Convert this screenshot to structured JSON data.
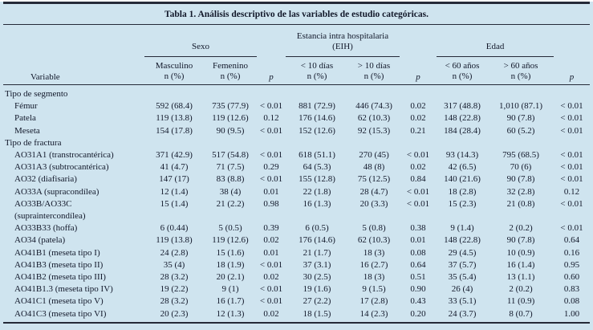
{
  "colors": {
    "page_bg": "#cfe4ef",
    "text": "#12182a",
    "rule": "#252a38"
  },
  "title": "Tabla 1. Análisis descriptivo de las variables de estudio categóricas.",
  "header": {
    "variable": "Variable",
    "p": "p",
    "groups": [
      {
        "label": "Sexo",
        "cols": [
          {
            "name": "Masculino",
            "unit": "n (%)"
          },
          {
            "name": "Femenino",
            "unit": "n (%)"
          }
        ]
      },
      {
        "label": "Estancia intra hospitalaria (EIH)",
        "cols": [
          {
            "name": "< 10 días",
            "unit": "n (%)"
          },
          {
            "name": "> 10 días",
            "unit": "n (%)"
          }
        ]
      },
      {
        "label": "Edad",
        "cols": [
          {
            "name": "< 60 años",
            "unit": "n (%)"
          },
          {
            "name": "> 60 años",
            "unit": "n (%)"
          }
        ]
      }
    ]
  },
  "rows": [
    {
      "type": "section",
      "label": "Tipo de segmento"
    },
    {
      "type": "data",
      "label": "Fémur",
      "cells": [
        "592 (68.4)",
        "735 (77.9)",
        "< 0.01",
        "881 (72.9)",
        "446 (74.3)",
        "0.02",
        "317 (48.8)",
        "1,010 (87.1)",
        "< 0.01"
      ]
    },
    {
      "type": "data",
      "label": "Patela",
      "cells": [
        "119 (13.8)",
        "119 (12.6)",
        "0.12",
        "176 (14.6)",
        "62 (10.3)",
        "0.02",
        "148 (22.8)",
        "90 (7.8)",
        "< 0.01"
      ]
    },
    {
      "type": "data",
      "label": "Meseta",
      "cells": [
        "154 (17.8)",
        "90 (9.5)",
        "< 0.01",
        "152 (12.6)",
        "92 (15.3)",
        "0.21",
        "184 (28.4)",
        "60 (5.2)",
        "< 0.01"
      ]
    },
    {
      "type": "section",
      "label": "Tipo de fractura"
    },
    {
      "type": "data",
      "label": "AO31A1 (transtrocantérica)",
      "cells": [
        "371 (42.9)",
        "517 (54.8)",
        "< 0.01",
        "618 (51.1)",
        "270 (45)",
        "< 0.01",
        "93 (14.3)",
        "795 (68.5)",
        "< 0.01"
      ]
    },
    {
      "type": "data",
      "label": "AO31A3 (subtrocantérica)",
      "cells": [
        "41 (4.7)",
        "71 (7.5)",
        "0.29",
        "64 (5.3)",
        "48 (8)",
        "0.02",
        "42 (6.5)",
        "70 (6)",
        "< 0.01"
      ]
    },
    {
      "type": "data",
      "label": "AO32 (diafisaria)",
      "cells": [
        "147 (17)",
        "83 (8.8)",
        "< 0.01",
        "155 (12.8)",
        "75 (12.5)",
        "0.84",
        "140 (21.6)",
        "90 (7.8)",
        "< 0.01"
      ]
    },
    {
      "type": "data",
      "label": "AO33A (supracondílea)",
      "cells": [
        "12 (1.4)",
        "38 (4)",
        "0.01",
        "22 (1.8)",
        "28 (4.7)",
        "< 0.01",
        "18 (2.8)",
        "32 (2.8)",
        "0.12"
      ]
    },
    {
      "type": "data",
      "label": "AO33B/AO33C",
      "label2": "(supraintercondílea)",
      "cells": [
        "15 (1.4)",
        "21 (2.2)",
        "0.98",
        "16 (1.3)",
        "20 (3.3)",
        "< 0.01",
        "15 (2.3)",
        "21 (0.8)",
        "< 0.01"
      ]
    },
    {
      "type": "data",
      "label": "AO33B33 (hoffa)",
      "cells": [
        "6 (0.44)",
        "5 (0.5)",
        "0.39",
        "6 (0.5)",
        "5 (0.8)",
        "0.38",
        "9 (1.4)",
        "2 (0.2)",
        "< 0.01"
      ]
    },
    {
      "type": "data",
      "label": "AO34 (patela)",
      "cells": [
        "119 (13.8)",
        "119 (12.6)",
        "0.02",
        "176 (14.6)",
        "62 (10.3)",
        "0.01",
        "148 (22.8)",
        "90 (7.8)",
        "0.64"
      ]
    },
    {
      "type": "data",
      "label": "AO41B1 (meseta tipo I)",
      "cells": [
        "24 (2.8)",
        "15 (1.6)",
        "0.01",
        "21 (1.7)",
        "18 (3)",
        "0.08",
        "29 (4.5)",
        "10 (0.9)",
        "0.16"
      ]
    },
    {
      "type": "data",
      "label": "AO41B3 (meseta tipo II)",
      "cells": [
        "35 (4)",
        "18 (1.9)",
        "< 0.01",
        "37 (3.1)",
        "16 (2.7)",
        "0.64",
        "37 (5.7)",
        "16 (1.4)",
        "0.95"
      ]
    },
    {
      "type": "data",
      "label": "AO41B2 (meseta tipo III)",
      "cells": [
        "28 (3.2)",
        "20 (2.1)",
        "0.02",
        "30 (2.5)",
        "18 (3)",
        "0.51",
        "35 (5.4)",
        "13 (1.1)",
        "0.60"
      ]
    },
    {
      "type": "data",
      "label": "AO41B1.3 (meseta tipo IV)",
      "cells": [
        "19 (2.2)",
        "9 (1)",
        "< 0.01",
        "19 (1.6)",
        "9 (1.5)",
        "0.90",
        "26 (4)",
        "2 (0.2)",
        "0.83"
      ]
    },
    {
      "type": "data",
      "label": "AO41C1 (meseta tipo V)",
      "cells": [
        "28 (3.2)",
        "16 (1.7)",
        "< 0.01",
        "27 (2.2)",
        "17 (2.8)",
        "0.43",
        "33 (5.1)",
        "11 (0.9)",
        "0.08"
      ]
    },
    {
      "type": "data",
      "label": "AO41C3 (meseta tipo VI)",
      "cells": [
        "20 (2.3)",
        "12 (1.3)",
        "0.02",
        "18 (1.5)",
        "14 (2.3)",
        "0.20",
        "24 (3.7)",
        "8 (0.7)",
        "1.00"
      ]
    }
  ]
}
